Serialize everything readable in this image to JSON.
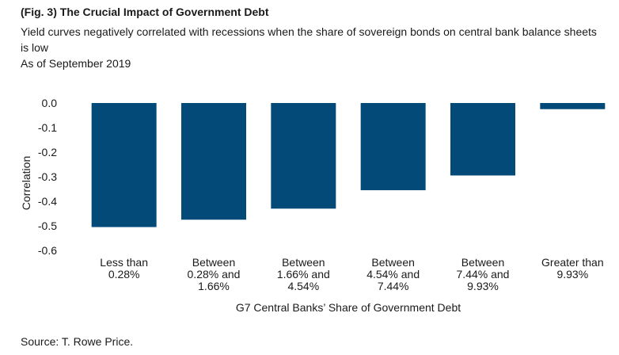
{
  "header": {
    "title": "(Fig. 3) The Crucial Impact of Government Debt",
    "subtitle": "Yield curves negatively correlated with recessions when the share of sovereign bonds on central bank balance sheets is low",
    "as_of": "As of September 2019"
  },
  "footer": {
    "source": "Source: T. Rowe Price."
  },
  "colors": {
    "bar": "#044a79"
  },
  "chart_data": {
    "type": "bar",
    "title": "(Fig. 3) The Crucial Impact of Government Debt",
    "xlabel": "G7 Central Banks’ Share of Government Debt",
    "ylabel": "Correlation",
    "ylim": [
      -0.6,
      0.0
    ],
    "yticks": [
      "0.0",
      "-0.1",
      "-0.2",
      "-0.3",
      "-0.4",
      "-0.5",
      "-0.6"
    ],
    "ytick_values": [
      0.0,
      -0.1,
      -0.2,
      -0.3,
      -0.4,
      -0.5,
      -0.6
    ],
    "categories": [
      [
        "Less than",
        "0.28%"
      ],
      [
        "Between",
        "0.28% and",
        "1.66%"
      ],
      [
        "Between",
        "1.66% and",
        "4.54%"
      ],
      [
        "Between",
        "4.54% and",
        "7.44%"
      ],
      [
        "Between",
        "7.44% and",
        "9.93%"
      ],
      [
        "Greater than",
        "9.93%"
      ]
    ],
    "values": [
      -0.505,
      -0.475,
      -0.43,
      -0.355,
      -0.295,
      -0.025
    ],
    "grid": false,
    "legend": "none"
  }
}
